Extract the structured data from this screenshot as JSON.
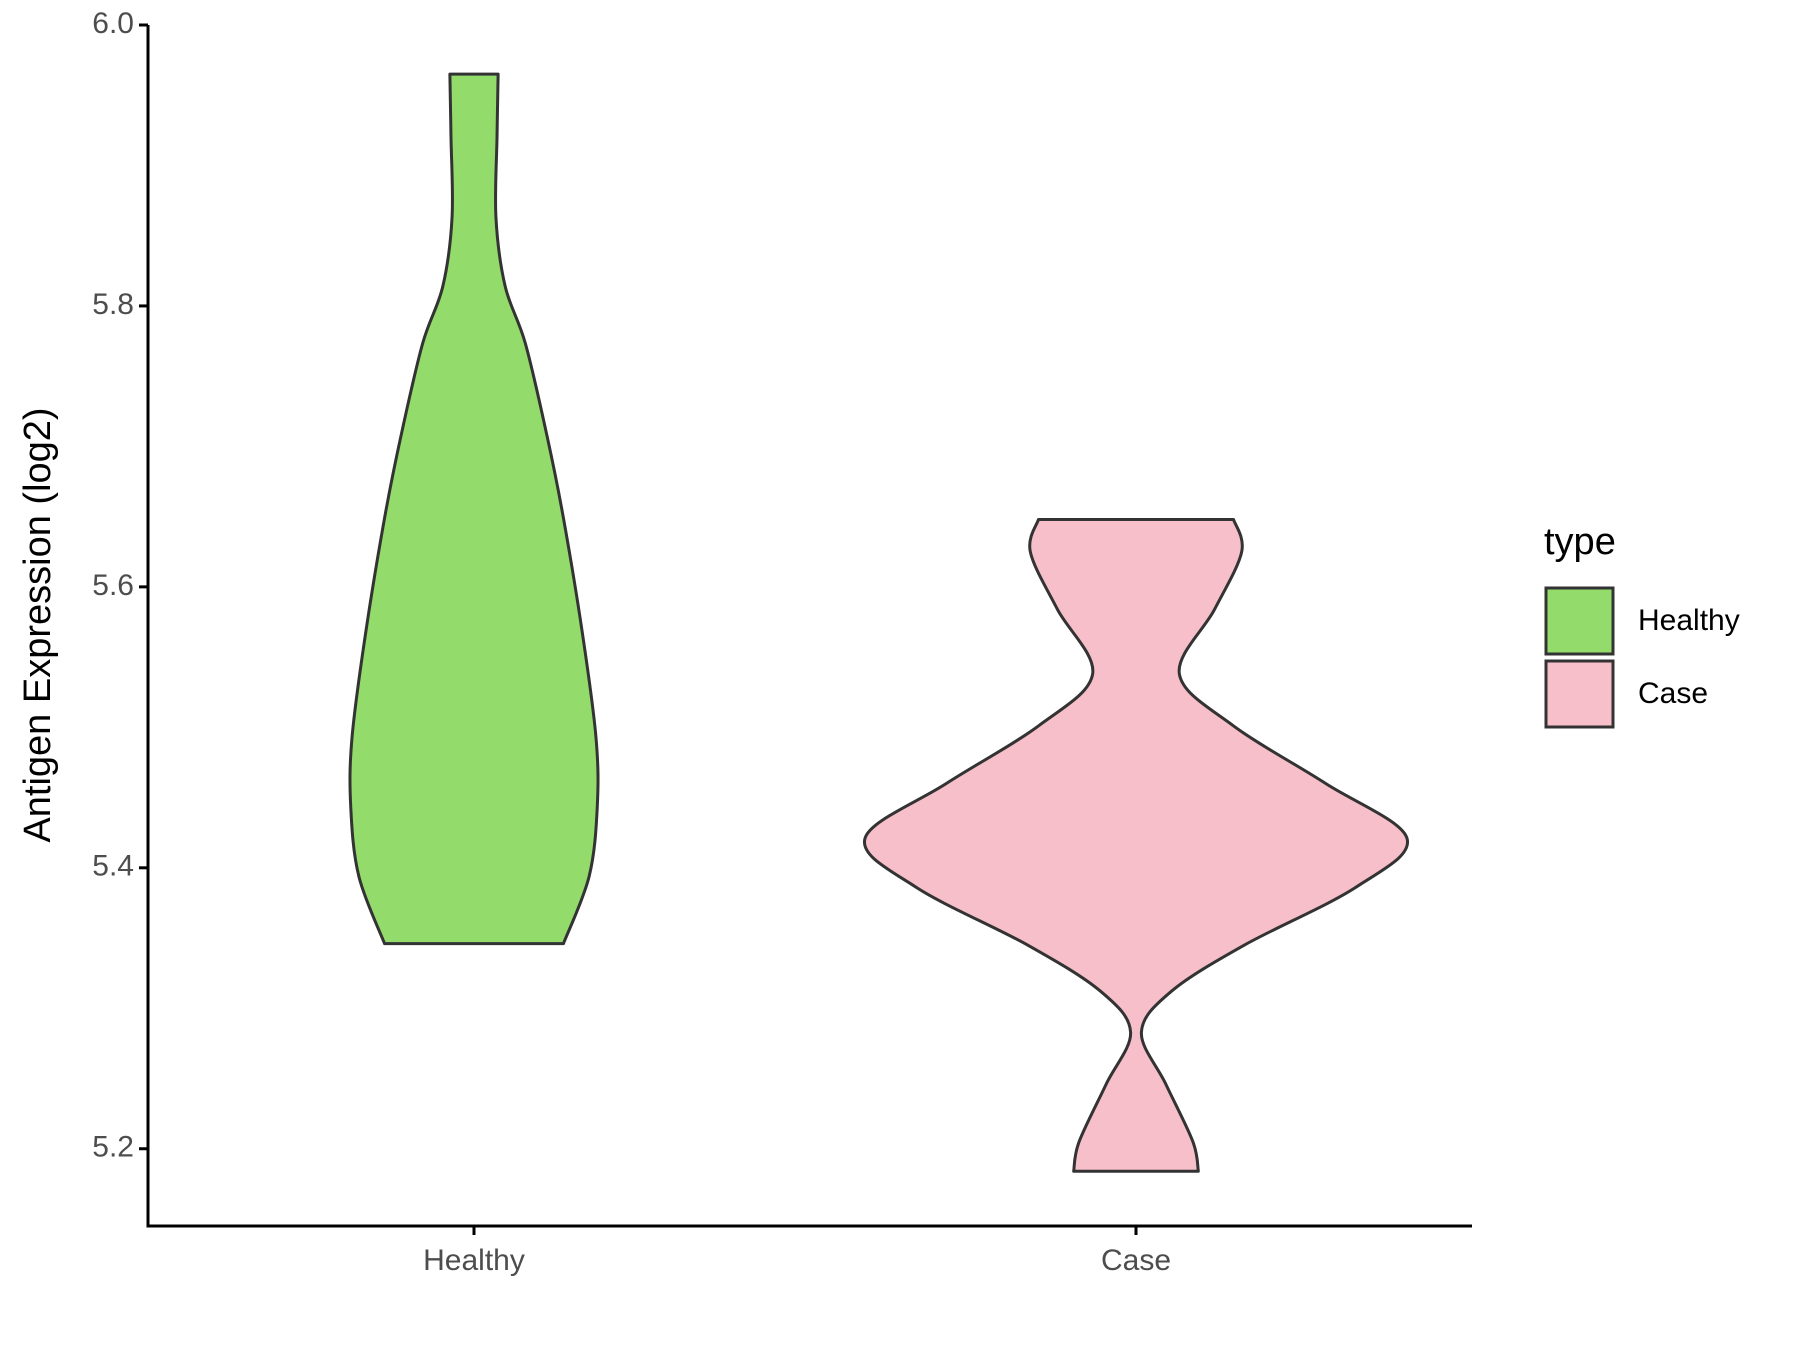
{
  "chart_data": {
    "type": "violin",
    "y_label": "Antigen Expression (log2)",
    "legend_title": "type",
    "categories": [
      "Healthy",
      "Case"
    ],
    "ylim": [
      5.145,
      6.0
    ],
    "yticks": [
      5.2,
      5.4,
      5.6,
      5.8,
      {
        "value": 6.0,
        "label": "6.0"
      }
    ],
    "series": [
      {
        "name": "Healthy",
        "color": "#93db6b",
        "y": [
          5.965,
          5.921,
          5.863,
          5.814,
          5.773,
          5.707,
          5.649,
          5.567,
          5.493,
          5.444,
          5.394,
          5.346
        ],
        "width": [
          0.089,
          0.085,
          0.081,
          0.115,
          0.19,
          0.27,
          0.33,
          0.4,
          0.45,
          0.455,
          0.425,
          0.33
        ]
      },
      {
        "name": "Case",
        "color": "#f7bfca",
        "y": [
          5.648,
          5.625,
          5.584,
          5.538,
          5.501,
          5.46,
          5.421,
          5.386,
          5.345,
          5.312,
          5.283,
          5.246,
          5.205,
          5.184
        ],
        "width": [
          0.36,
          0.39,
          0.29,
          0.16,
          0.36,
          0.7,
          1.0,
          0.81,
          0.4,
          0.13,
          0.02,
          0.11,
          0.21,
          0.23
        ]
      }
    ]
  }
}
